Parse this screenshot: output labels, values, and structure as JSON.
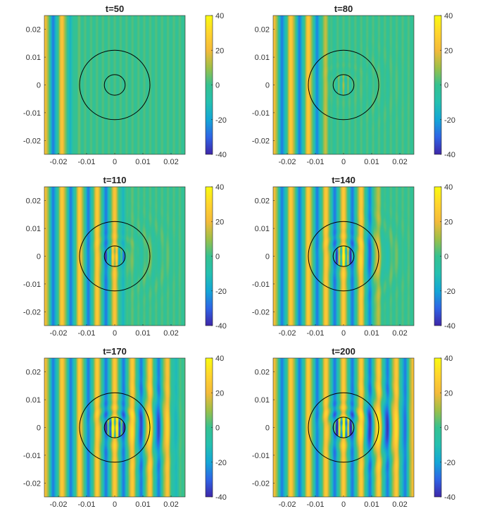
{
  "chart_data": {
    "type": "heatmap",
    "description_units": "x and y in same spatial units; color = field amplitude",
    "xlim": [
      -0.025,
      0.025
    ],
    "ylim": [
      -0.025,
      0.025
    ],
    "xticks": [
      -0.02,
      -0.01,
      0,
      0.01,
      0.02
    ],
    "xtick_labels": [
      "-0.02",
      "-0.01",
      "0",
      "0.01",
      "0.02"
    ],
    "yticks": [
      0.02,
      0.01,
      0,
      -0.01,
      -0.02
    ],
    "ytick_labels": [
      "0.02",
      "0.01",
      "0",
      "-0.01",
      "-0.02"
    ],
    "clim": [
      -40,
      40
    ],
    "colorbar_ticks": [
      40,
      20,
      0,
      -20,
      -40
    ],
    "colorbar_labels": [
      "40",
      "20",
      "0",
      "-20",
      "-40"
    ],
    "colormap": "parula",
    "colormap_colors": [
      "#3E26A8",
      "#2F64E5",
      "#14A6D6",
      "#25C0B0",
      "#36C190",
      "#9EBF48",
      "#F4BA3A",
      "#FFD42E",
      "#F9FB0E"
    ],
    "overlay_circles": [
      {
        "center": [
          0,
          0
        ],
        "radius": 0.0125
      },
      {
        "center": [
          0,
          0
        ],
        "radius": 0.0037
      }
    ],
    "panels": [
      {
        "title": "t=50",
        "t": 50
      },
      {
        "title": "t=80",
        "t": 80
      },
      {
        "title": "t=110",
        "t": 110
      },
      {
        "title": "t=140",
        "t": 140
      },
      {
        "title": "t=170",
        "t": 170
      },
      {
        "title": "t=200",
        "t": 200
      }
    ]
  }
}
